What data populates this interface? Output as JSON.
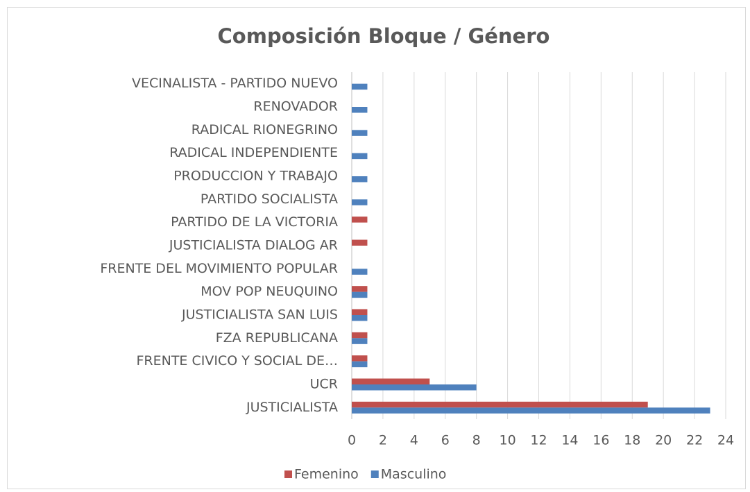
{
  "chart_data": {
    "type": "bar",
    "orientation": "horizontal",
    "title": "Composición Bloque / Género",
    "categories": [
      "VECINALISTA -  PARTIDO NUEVO",
      "RENOVADOR",
      "RADICAL RIONEGRINO",
      "RADICAL INDEPENDIENTE",
      "PRODUCCION Y TRABAJO",
      "PARTIDO SOCIALISTA",
      "PARTIDO DE LA VICTORIA",
      "JUSTICIALISTA DIALOG AR",
      "FRENTE DEL MOVIMIENTO POPULAR",
      "MOV POP NEUQUINO",
      "JUSTICIALISTA SAN LUIS",
      "FZA REPUBLICANA",
      "FRENTE CIVICO Y SOCIAL DE…",
      "UCR",
      "JUSTICIALISTA"
    ],
    "series": [
      {
        "name": "Femenino",
        "color": "#c0504d",
        "values": [
          0,
          0,
          0,
          0,
          0,
          0,
          1,
          1,
          0,
          1,
          1,
          1,
          1,
          5,
          19
        ]
      },
      {
        "name": "Masculino",
        "color": "#4f81bd",
        "values": [
          1,
          1,
          1,
          1,
          1,
          1,
          0,
          0,
          1,
          1,
          1,
          1,
          1,
          8,
          23
        ]
      }
    ],
    "xlim": [
      0,
      24
    ],
    "xticks": [
      0,
      2,
      4,
      6,
      8,
      10,
      12,
      14,
      16,
      18,
      20,
      22,
      24
    ],
    "grid": true,
    "legend": "bottom"
  }
}
